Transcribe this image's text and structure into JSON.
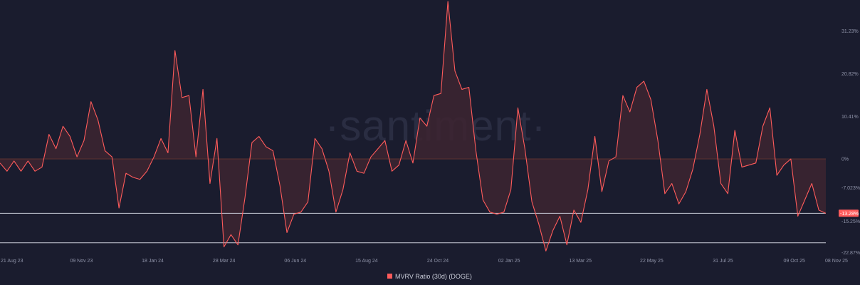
{
  "watermark": "·santiment·",
  "colors": {
    "background": "#1a1c2e",
    "line": "#ff5b5b",
    "area": "#3d2530",
    "zero_line": "#5a3030",
    "ref_line": "#c9ccd8",
    "current_badge": "#ff5b5b"
  },
  "chart_data": {
    "type": "area",
    "title": "",
    "xlabel": "",
    "ylabel": "",
    "series": [
      {
        "name": "MVRV Ratio (30d) (DOGE)",
        "values": [
          -1,
          -3,
          -0.5,
          -3,
          -0.5,
          -3,
          -2,
          6,
          2.5,
          8,
          5.5,
          0.5,
          4.5,
          14,
          9.5,
          2,
          0.5,
          -12,
          -3.5,
          -4.5,
          -5,
          -3,
          0.5,
          5,
          1.5,
          26.5,
          15,
          15.5,
          0.5,
          17,
          -6,
          5,
          -21.5,
          -18.5,
          -21,
          -9.5,
          4,
          5.5,
          3,
          2,
          -6.5,
          -18,
          -13.5,
          -13,
          -10.5,
          5,
          2.5,
          -3,
          -13,
          -7.5,
          1.5,
          -3,
          -3.5,
          0.5,
          2.5,
          4.5,
          -3,
          -1.5,
          4.5,
          -1,
          10,
          8,
          15.5,
          16,
          38.5,
          21.5,
          17,
          17.5,
          2,
          -10,
          -13,
          -13.5,
          -13,
          -7.5,
          12.5,
          2.5,
          -10.5,
          -16,
          -22.5,
          -17.5,
          -14,
          -21,
          -12.5,
          -15.5,
          -7.5,
          5.5,
          -8,
          -0.5,
          0.5,
          15.5,
          11.5,
          17.5,
          19,
          14.5,
          4.5,
          -8.5,
          -6,
          -11,
          -8,
          -2.5,
          6,
          17,
          8,
          -6,
          -8.5,
          7,
          -2,
          -1.5,
          -1,
          8,
          12.5,
          -4,
          -1.5,
          0,
          -14,
          -10,
          -6,
          -12.5,
          -13.3
        ]
      }
    ],
    "x_range": [
      "2023-08-21",
      "2025-11-09"
    ],
    "x_ticks": [
      "21 Aug 23",
      "09 Nov 23",
      "18 Jan 24",
      "28 Mar 24",
      "06 Jun 24",
      "15 Aug 24",
      "24 Oct 24",
      "02 Jan 25",
      "13 Mar 25",
      "22 May 25",
      "31 Jul 25",
      "09 Oct 25",
      "08 Nov 25"
    ],
    "y_ticks": [
      "31.23%",
      "20.82%",
      "10.41%",
      "0%",
      "-7.023%",
      "-15.25%",
      "-22.87%"
    ],
    "y_tick_values": [
      31.23,
      20.82,
      10.41,
      0,
      -7.023,
      -15.25,
      -22.87
    ],
    "ylim": [
      -23.5,
      38.5
    ],
    "reference_lines": [
      -13.28,
      -20.5
    ],
    "current_value_label": "-13.28%",
    "current_value": -13.28,
    "grid": false,
    "legend": "bottom-center"
  }
}
